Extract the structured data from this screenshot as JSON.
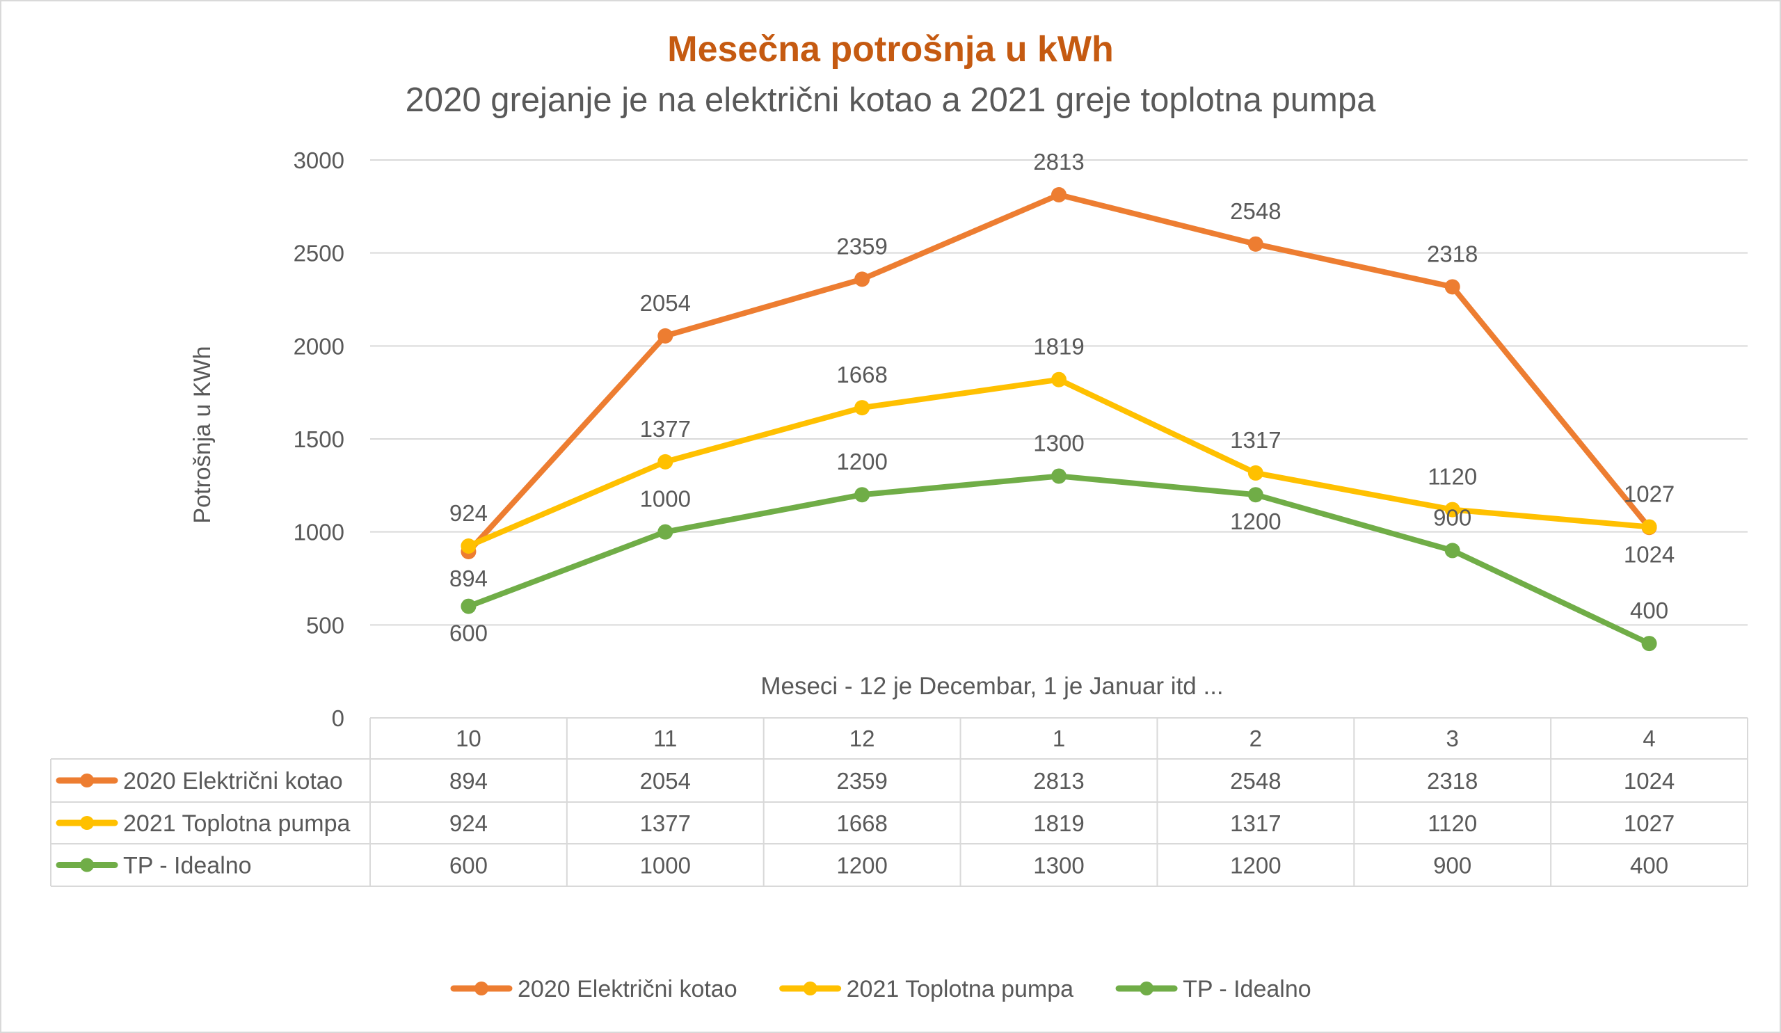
{
  "chart_data": {
    "type": "line",
    "title": "Mesečna potrošnja u kWh",
    "subtitle": "2020 grejanje je na električni kotao a 2021 greje toplotna pumpa",
    "xlabel": "Meseci - 12 je Decembar, 1 je Januar itd ...",
    "ylabel": "Potrošnja u KWh",
    "categories": [
      "10",
      "11",
      "12",
      "1",
      "2",
      "3",
      "4"
    ],
    "ylim": [
      0,
      3000
    ],
    "yticks": [
      0,
      500,
      1000,
      1500,
      2000,
      2500,
      3000
    ],
    "grid": true,
    "legend": "bottom",
    "data_table": true,
    "series": [
      {
        "name": "2020 Električni kotao",
        "color": "#ED7D31",
        "values": [
          894,
          2054,
          2359,
          2813,
          2548,
          2318,
          1024
        ]
      },
      {
        "name": "2021 Toplotna pumpa",
        "color": "#FFC000",
        "values": [
          924,
          1377,
          1668,
          1819,
          1317,
          1120,
          1027
        ]
      },
      {
        "name": "TP - Idealno",
        "color": "#70AD47",
        "values": [
          600,
          1000,
          1200,
          1300,
          1200,
          900,
          400
        ]
      }
    ],
    "title_color": "#C55A11"
  }
}
